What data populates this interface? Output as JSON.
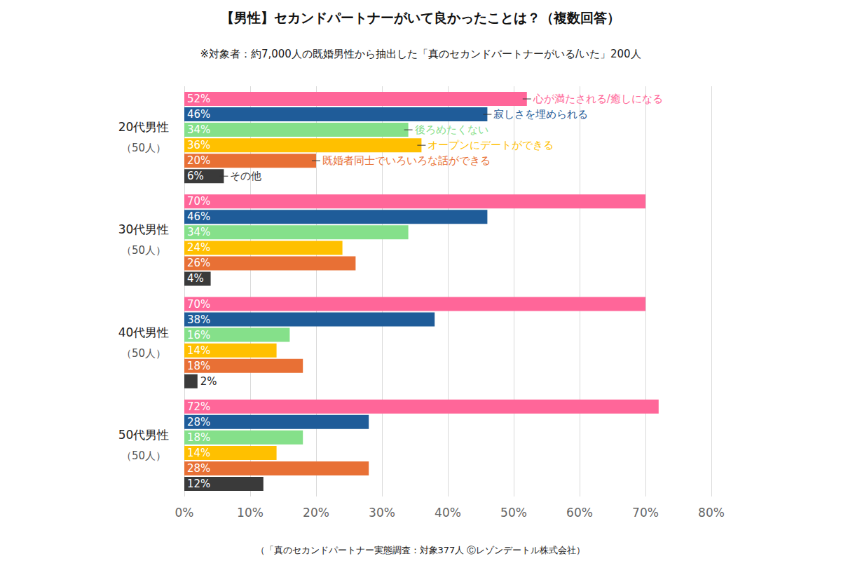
{
  "chart_data": {
    "type": "bar",
    "title": "【男性】セカンドパートナーがいて良かったことは？（複数回答）",
    "subtitle": "※対象者：約7,000人の既婚男性から抽出した「真のセカンドパートナーがいる/いた」200人",
    "source": "（「真のセカンドパートナー実態調査：対象377人 Ⓒレゾンデートル株式会社）",
    "orientation": "horizontal",
    "grid": true,
    "data_labels": true,
    "categories": [
      "20代男性",
      "30代男性",
      "40代男性",
      "50代男性"
    ],
    "category_notes": [
      "（50人）",
      "（50人）",
      "（50人）",
      "（50人）"
    ],
    "xlim": [
      0,
      80
    ],
    "xticks": [
      {
        "value": 0,
        "label": "0%"
      },
      {
        "value": 10,
        "label": "10%"
      },
      {
        "value": 20,
        "label": "20%"
      },
      {
        "value": 30,
        "label": "30%"
      },
      {
        "value": 40,
        "label": "40%"
      },
      {
        "value": 50,
        "label": "50%"
      },
      {
        "value": 60,
        "label": "60%"
      },
      {
        "value": 70,
        "label": "70%"
      },
      {
        "value": 80,
        "label": "80%"
      }
    ],
    "series": [
      {
        "name": "心が満たされる/癒しになる",
        "color": "#ff6699",
        "values": [
          52,
          70,
          70,
          72
        ],
        "value_labels": [
          "52%",
          "70%",
          "70%",
          "72%"
        ]
      },
      {
        "name": "寂しさを埋められる",
        "color": "#1f5c99",
        "values": [
          46,
          46,
          38,
          28
        ],
        "value_labels": [
          "46%",
          "46%",
          "38%",
          "28%"
        ]
      },
      {
        "name": "後ろめたくない",
        "color": "#85e08a",
        "values": [
          34,
          34,
          16,
          18
        ],
        "value_labels": [
          "34%",
          "34%",
          "16%",
          "18%"
        ]
      },
      {
        "name": "オープンにデートができる",
        "color": "#ffc000",
        "values": [
          36,
          24,
          14,
          14
        ],
        "value_labels": [
          "36%",
          "24%",
          "14%",
          "14%"
        ]
      },
      {
        "name": "既婚者同士でいろいろな話ができる",
        "color": "#e87035",
        "values": [
          20,
          26,
          18,
          28
        ],
        "value_labels": [
          "20%",
          "26%",
          "18%",
          "28%"
        ]
      },
      {
        "name": "その他",
        "color": "#3a3a3a",
        "values": [
          6,
          4,
          2,
          12
        ],
        "value_labels": [
          "6%",
          "4%",
          "2%",
          "12%"
        ]
      }
    ]
  }
}
